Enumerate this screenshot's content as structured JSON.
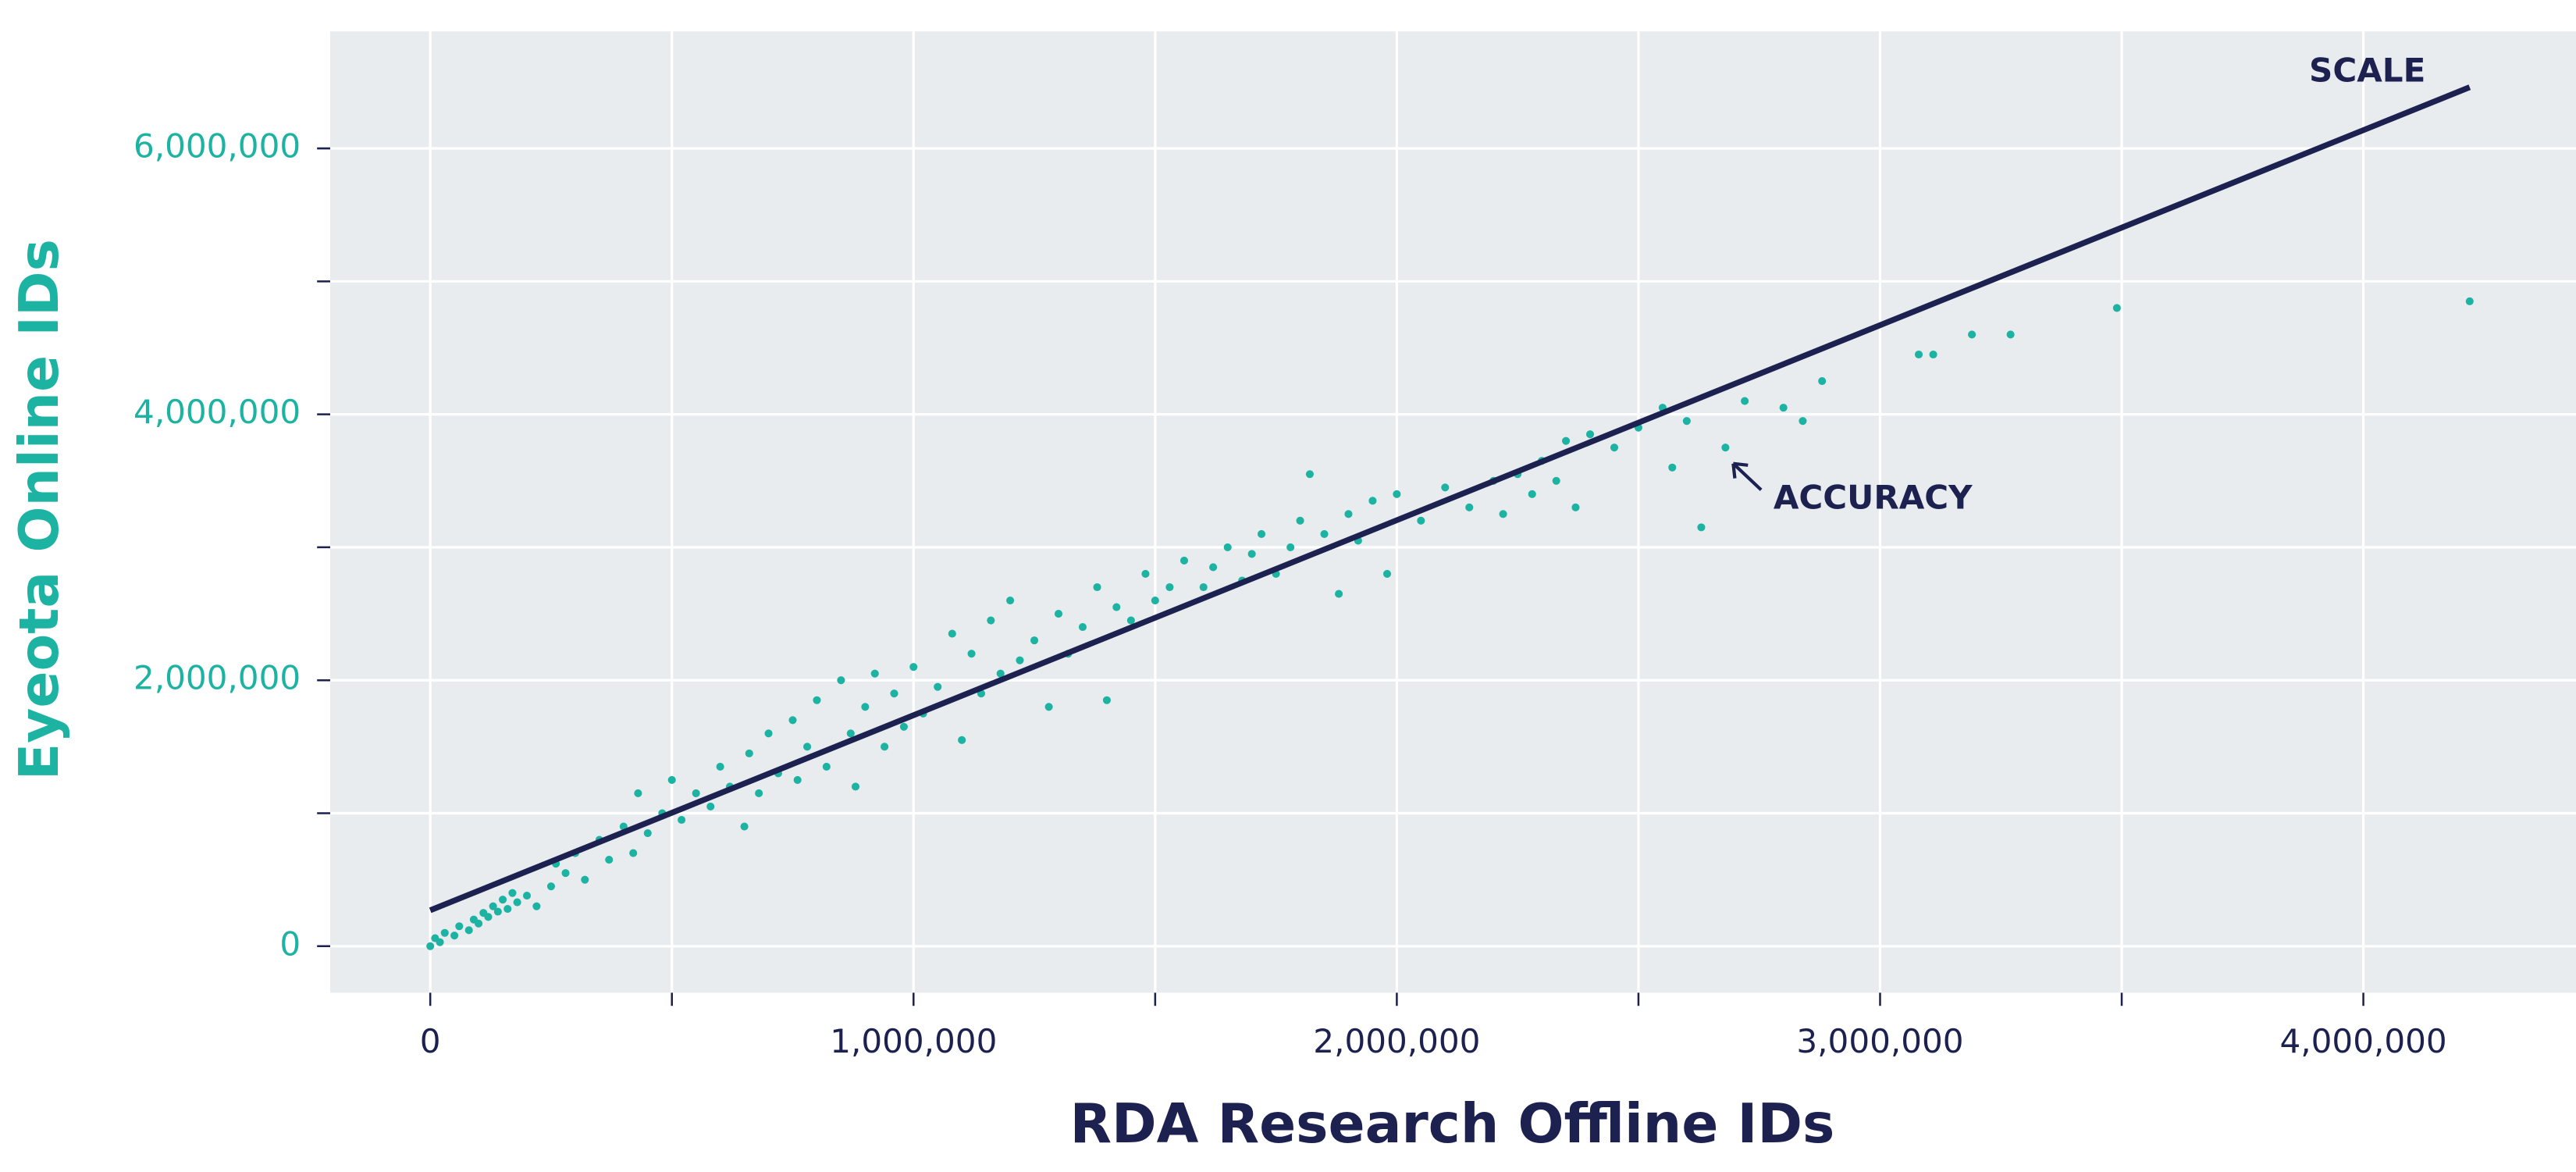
{
  "chart_data": {
    "type": "scatter",
    "xlabel": "RDA Research Offline IDs",
    "ylabel": "Eyeota Online IDs",
    "xlim": [
      -207000,
      4440000
    ],
    "ylim": [
      -350000,
      6880000
    ],
    "xticks": [
      0,
      {
        "value": 1000000,
        "label": "1,000,000"
      },
      {
        "value": 2000000,
        "label": "2,000,000"
      },
      {
        "value": 3000000,
        "label": "3,000,000"
      },
      {
        "value": 4000000,
        "label": "4,000,000"
      }
    ],
    "yticks": [
      0,
      {
        "value": 2000000,
        "label": "2,000,000"
      },
      {
        "value": 4000000,
        "label": "4,000,000"
      },
      {
        "value": 6000000,
        "label": "6,000,000"
      }
    ],
    "x_minor_ticks": [
      500000,
      1500000,
      2500000,
      3500000
    ],
    "y_minor_ticks": [
      1000000,
      3000000,
      5000000
    ],
    "grid": true,
    "series": [
      {
        "type": "scatter",
        "color": "#1db3a3",
        "x": [
          0,
          10000,
          20000,
          30000,
          50000,
          60000,
          80000,
          90000,
          100000,
          110000,
          120000,
          130000,
          140000,
          150000,
          160000,
          170000,
          180000,
          200000,
          220000,
          250000,
          260000,
          280000,
          300000,
          320000,
          350000,
          370000,
          400000,
          420000,
          430000,
          450000,
          480000,
          500000,
          520000,
          550000,
          580000,
          600000,
          620000,
          650000,
          660000,
          680000,
          700000,
          720000,
          750000,
          760000,
          780000,
          800000,
          820000,
          850000,
          870000,
          880000,
          900000,
          920000,
          940000,
          960000,
          980000,
          1000000,
          1020000,
          1050000,
          1080000,
          1100000,
          1120000,
          1140000,
          1160000,
          1180000,
          1200000,
          1220000,
          1250000,
          1280000,
          1300000,
          1320000,
          1350000,
          1380000,
          1400000,
          1420000,
          1450000,
          1480000,
          1500000,
          1530000,
          1560000,
          1600000,
          1620000,
          1650000,
          1680000,
          1700000,
          1720000,
          1750000,
          1780000,
          1800000,
          1820000,
          1850000,
          1880000,
          1900000,
          1920000,
          1950000,
          1980000,
          2000000,
          2050000,
          2100000,
          2150000,
          2200000,
          2220000,
          2250000,
          2280000,
          2300000,
          2330000,
          2350000,
          2370000,
          2400000,
          2450000,
          2500000,
          2550000,
          2570000,
          2600000,
          2630000,
          2680000,
          2720000,
          2800000,
          2840000,
          2880000,
          3080000,
          3110000,
          3190000,
          3270000,
          3490000,
          4220000
        ],
        "values": [
          0,
          60000,
          30000,
          100000,
          80000,
          150000,
          120000,
          200000,
          170000,
          250000,
          220000,
          300000,
          260000,
          350000,
          280000,
          400000,
          330000,
          380000,
          300000,
          450000,
          620000,
          550000,
          700000,
          500000,
          800000,
          650000,
          900000,
          700000,
          1150000,
          850000,
          1000000,
          1250000,
          950000,
          1150000,
          1050000,
          1350000,
          1200000,
          900000,
          1450000,
          1150000,
          1600000,
          1300000,
          1700000,
          1250000,
          1500000,
          1850000,
          1350000,
          2000000,
          1600000,
          1200000,
          1800000,
          2050000,
          1500000,
          1900000,
          1650000,
          2100000,
          1750000,
          1950000,
          2350000,
          1550000,
          2200000,
          1900000,
          2450000,
          2050000,
          2600000,
          2150000,
          2300000,
          1800000,
          2500000,
          2200000,
          2400000,
          2700000,
          1850000,
          2550000,
          2450000,
          2800000,
          2600000,
          2700000,
          2900000,
          2700000,
          2850000,
          3000000,
          2750000,
          2950000,
          3100000,
          2800000,
          3000000,
          3200000,
          3550000,
          3100000,
          2650000,
          3250000,
          3050000,
          3350000,
          2800000,
          3400000,
          3200000,
          3450000,
          3300000,
          3500000,
          3250000,
          3550000,
          3400000,
          3650000,
          3500000,
          3800000,
          3300000,
          3850000,
          3750000,
          3900000,
          4050000,
          3600000,
          3950000,
          3150000,
          3750000,
          4100000,
          4050000,
          3950000,
          4250000,
          4450000,
          4450000,
          4600000,
          4600000,
          4800000,
          4850000
        ]
      },
      {
        "type": "line",
        "color": "#1d2150",
        "x": [
          0,
          4220000
        ],
        "values": [
          270000,
          6460000
        ]
      }
    ],
    "annotations": [
      {
        "text": "SCALE"
      },
      {
        "text": "ACCURACY"
      }
    ]
  }
}
